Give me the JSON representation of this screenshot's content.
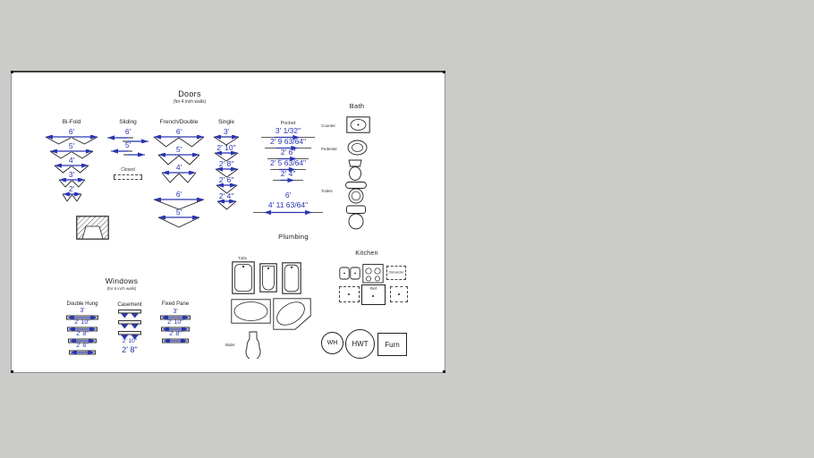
{
  "colors": {
    "canvas_bg": "#cbcbc9",
    "paper": "#ffffff",
    "accent": "#2a35b0",
    "ink": "#222222"
  },
  "doors": {
    "title": "Doors",
    "subtitle": "(for 4 inch walls)",
    "bifold": {
      "label": "Bi-Fold",
      "sizes": [
        "6'",
        "5'",
        "4'",
        "3'",
        "2'"
      ]
    },
    "sliding": {
      "label": "Sliding",
      "sizes": [
        "6'",
        "5'"
      ],
      "closed_label": "Closed"
    },
    "french": {
      "label": "French/Double",
      "double_sizes": [
        "6'",
        "5'",
        "4'"
      ],
      "single_sizes": [
        "6'",
        "5'"
      ]
    },
    "single": {
      "label": "Single",
      "sizes": [
        "3'",
        "2' 10\"",
        "2' 8\"",
        "2' 6\"",
        "2' 4\""
      ]
    },
    "pocket": {
      "label": "Pocket",
      "sizes": [
        "3' 1/32\"",
        "2' 9 63/64\"",
        "2' 6\"",
        "2' 5 63/64\"",
        "2' 4\""
      ],
      "wide_sizes": [
        "6'",
        "4' 11 63/64\""
      ]
    }
  },
  "windows": {
    "title": "Windows",
    "subtitle": "(for 6 inch walls)",
    "double_hung": {
      "label": "Double Hung",
      "sizes": [
        "3'",
        "2' 10\"",
        "2' 8\"",
        "2' 6\""
      ]
    },
    "casement": {
      "label": "Casement",
      "sizes": [
        "2' 10\"",
        "2' 8\""
      ]
    },
    "fixed_pane": {
      "label": "Fixed Pane",
      "sizes": [
        "3'",
        "2' 10\"",
        "2' 8\""
      ]
    }
  },
  "bath": {
    "title": "Bath",
    "counter_label": "Counter",
    "pedestal_label": "Pedestal",
    "toilets_label": "Toilets"
  },
  "plumbing": {
    "title": "Plumbing",
    "tubs_label": "Tubs",
    "bidet_label": "Bidet"
  },
  "kitchen": {
    "title": "Kitchen",
    "ref_label": "Ref",
    "dishwasher_label": "Dishwasher"
  },
  "equipment": {
    "water_heater": "WH",
    "hot_water_tank": "HWT",
    "furnace": "Furn"
  }
}
